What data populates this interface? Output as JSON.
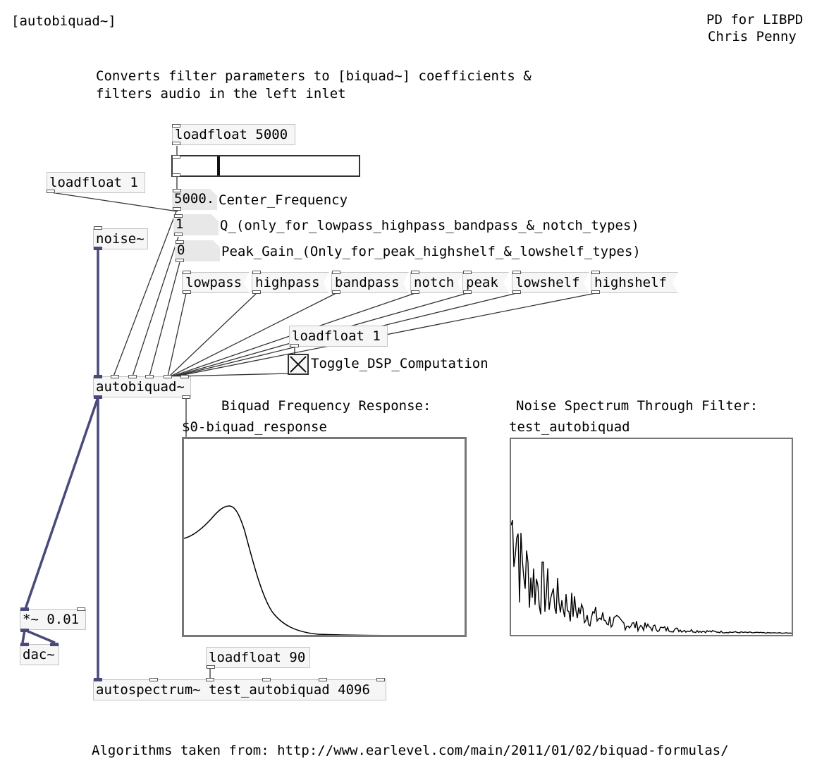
{
  "header": {
    "object_name": "[autobiquad~]",
    "platform": "PD for LIBPD",
    "author": "Chris Penny"
  },
  "description": {
    "line1": "Converts filter parameters to [biquad~] coefficients &",
    "line2": "filters audio in the left inlet"
  },
  "objects": {
    "loadfloat_5000": "loadfloat 5000",
    "loadfloat_1_q": "loadfloat 1",
    "noise": "noise~",
    "loadfloat_1_dsp": "loadfloat 1",
    "autobiquad": "autobiquad~",
    "mult": "*~ 0.01",
    "dac": "dac~",
    "loadfloat_90": "loadfloat 90",
    "autospectrum": "autospectrum~ test_autobiquad 4096"
  },
  "number_boxes": {
    "center_frequency_value": "5000.",
    "q_value": "1",
    "peak_gain_value": "0"
  },
  "labels": {
    "center_frequency": "Center_Frequency",
    "q": "Q_(only_for_lowpass_highpass_bandpass_&_notch_types)",
    "peak_gain": "Peak_Gain_(Only_for_peak_highshelf_&_lowshelf_types)",
    "toggle_dsp": "Toggle_DSP_Computation"
  },
  "messages": [
    "lowpass",
    "highpass",
    "bandpass",
    "notch",
    "peak",
    "lowshelf",
    "highshelf"
  ],
  "slider": {
    "value": 5000,
    "fraction": 0.24
  },
  "toggle": {
    "checked": true
  },
  "graphs": {
    "response_title": "Biquad Frequency Response:",
    "response_array": "$0-biquad_response",
    "spectrum_title": "Noise Spectrum Through Filter:",
    "spectrum_array": "test_autobiquad"
  },
  "footer": {
    "credit": "Algorithms taken from: http://www.earlevel.com/main/2011/01/02/biquad-formulas/"
  },
  "colors": {
    "signal_wire": "#4a4a7a",
    "control_wire": "#333333",
    "box_fill": "#f6f6f6"
  }
}
